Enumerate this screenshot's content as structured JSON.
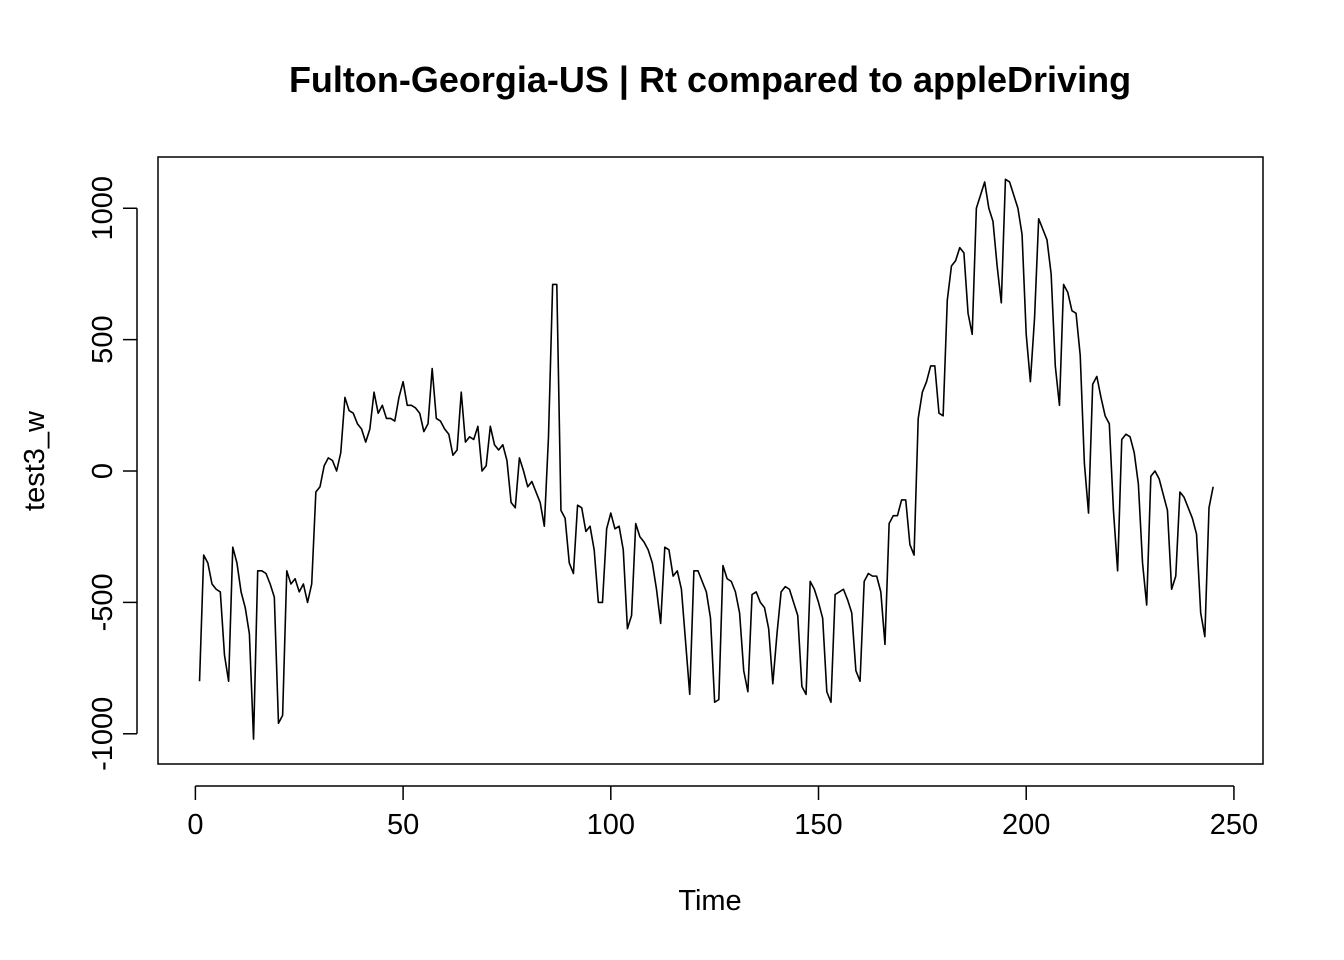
{
  "chart_data": {
    "type": "line",
    "title": "Fulton-Georgia-US | Rt compared to appleDriving",
    "xlabel": "Time",
    "ylabel": "test3_w",
    "xlim": [
      -9,
      257
    ],
    "ylim": [
      -1115,
      1195
    ],
    "xticks": [
      0,
      50,
      100,
      150,
      200,
      250
    ],
    "yticks": [
      -1000,
      -500,
      0,
      500,
      1000
    ],
    "xtick_labels": [
      "0",
      "50",
      "100",
      "150",
      "200",
      "250"
    ],
    "ytick_labels": [
      "-1000",
      "-500",
      "0",
      "500",
      "1000"
    ],
    "grid": false,
    "legend": "none",
    "line_color": "#000000",
    "x_start": 1,
    "values": [
      -800,
      -320,
      -350,
      -430,
      -450,
      -460,
      -700,
      -800,
      -290,
      -350,
      -460,
      -520,
      -620,
      -1020,
      -380,
      -380,
      -390,
      -430,
      -480,
      -960,
      -930,
      -380,
      -430,
      -410,
      -460,
      -430,
      -500,
      -430,
      -80,
      -60,
      20,
      50,
      40,
      0,
      70,
      280,
      230,
      220,
      180,
      160,
      110,
      160,
      300,
      220,
      250,
      200,
      200,
      190,
      280,
      340,
      250,
      250,
      240,
      220,
      150,
      180,
      390,
      200,
      190,
      160,
      140,
      60,
      80,
      300,
      110,
      130,
      120,
      170,
      0,
      20,
      170,
      100,
      80,
      100,
      40,
      -120,
      -140,
      50,
      0,
      -60,
      -40,
      -80,
      -120,
      -210,
      130,
      710,
      710,
      -150,
      -180,
      -350,
      -390,
      -130,
      -140,
      -230,
      -210,
      -300,
      -500,
      -500,
      -220,
      -160,
      -220,
      -210,
      -300,
      -600,
      -550,
      -200,
      -250,
      -270,
      -300,
      -350,
      -450,
      -580,
      -290,
      -300,
      -400,
      -380,
      -450,
      -650,
      -850,
      -380,
      -380,
      -420,
      -460,
      -560,
      -880,
      -870,
      -360,
      -410,
      -420,
      -460,
      -540,
      -760,
      -840,
      -470,
      -460,
      -500,
      -520,
      -600,
      -810,
      -620,
      -460,
      -440,
      -450,
      -500,
      -550,
      -820,
      -850,
      -420,
      -450,
      -500,
      -560,
      -840,
      -880,
      -470,
      -460,
      -450,
      -490,
      -540,
      -760,
      -800,
      -420,
      -390,
      -400,
      -400,
      -460,
      -660,
      -200,
      -170,
      -170,
      -110,
      -110,
      -280,
      -320,
      200,
      300,
      340,
      400,
      400,
      220,
      210,
      650,
      780,
      800,
      850,
      830,
      600,
      520,
      1000,
      1050,
      1100,
      1000,
      950,
      780,
      640,
      1110,
      1100,
      1050,
      1000,
      900,
      520,
      340,
      580,
      960,
      920,
      880,
      750,
      400,
      250,
      710,
      680,
      610,
      600,
      440,
      30,
      -160,
      330,
      360,
      280,
      210,
      180,
      -150,
      -380,
      120,
      140,
      130,
      70,
      -50,
      -350,
      -510,
      -20,
      0,
      -30,
      -90,
      -150,
      -450,
      -400,
      -80,
      -100,
      -140,
      -180,
      -240,
      -540,
      -630,
      -140,
      -60
    ]
  }
}
